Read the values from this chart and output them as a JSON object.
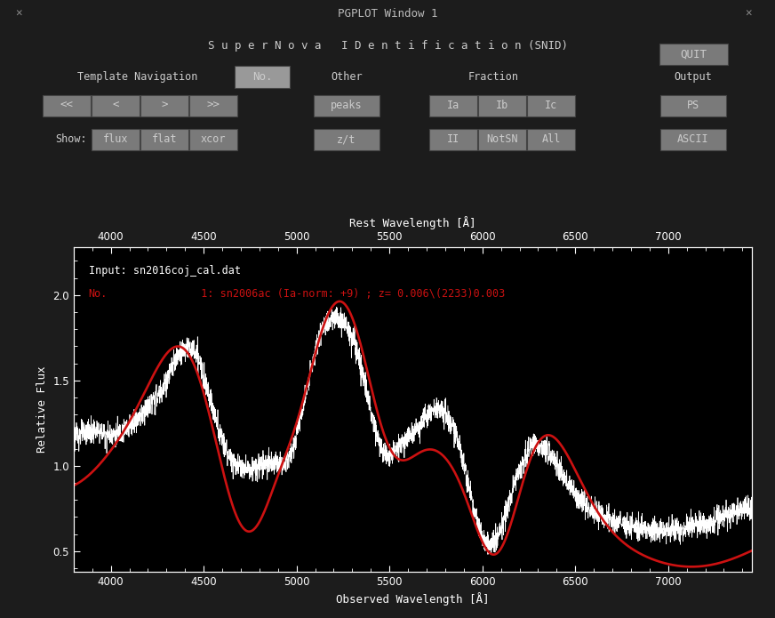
{
  "title": "PGPLOT Window 1",
  "bg_dark": "#1c1c1c",
  "bg_black": "#000000",
  "btn_color": "#7a7a7a",
  "btn_highlight": "#999999",
  "text_color": "#cccccc",
  "title_text": "S u p e r N o v a   I D e n t i f i c a t i o n (SNID)",
  "input_label": "Input: sn2016coj_cal.dat",
  "match_label_no": "No.",
  "match_label_rest": "          1: sn2006ac (Ia-norm: +9) ; z= 0.006\\(2233)0.003",
  "xlabel_bottom": "Observed Wavelength [Å]",
  "xlabel_top": "Rest Wavelength [Å]",
  "ylabel": "Relative Flux",
  "xlim": [
    3800,
    7450
  ],
  "ylim": [
    0.38,
    2.28
  ],
  "yticks": [
    0.5,
    1.0,
    1.5,
    2.0
  ],
  "xticks": [
    4000,
    4500,
    5000,
    5500,
    6000,
    6500,
    7000
  ],
  "white_color": "#ffffff",
  "red_color": "#cc1111",
  "nav_buttons": [
    "<<",
    "<",
    ">",
    ">>"
  ],
  "show_buttons": [
    "flux",
    "flat",
    "xcor"
  ],
  "other_buttons": [
    "peaks",
    "z/t"
  ],
  "frac_row1": [
    "Ia",
    "Ib",
    "Ic"
  ],
  "frac_row2": [
    "II",
    "NotSN",
    "All"
  ],
  "out_buttons": [
    "PS",
    "ASCII"
  ],
  "quit_button": "QUIT",
  "no_button": "No.",
  "output_label": "Output",
  "template_label": "Template Navigation",
  "other_label": "Other",
  "fraction_label": "Fraction",
  "show_label": "Show:"
}
